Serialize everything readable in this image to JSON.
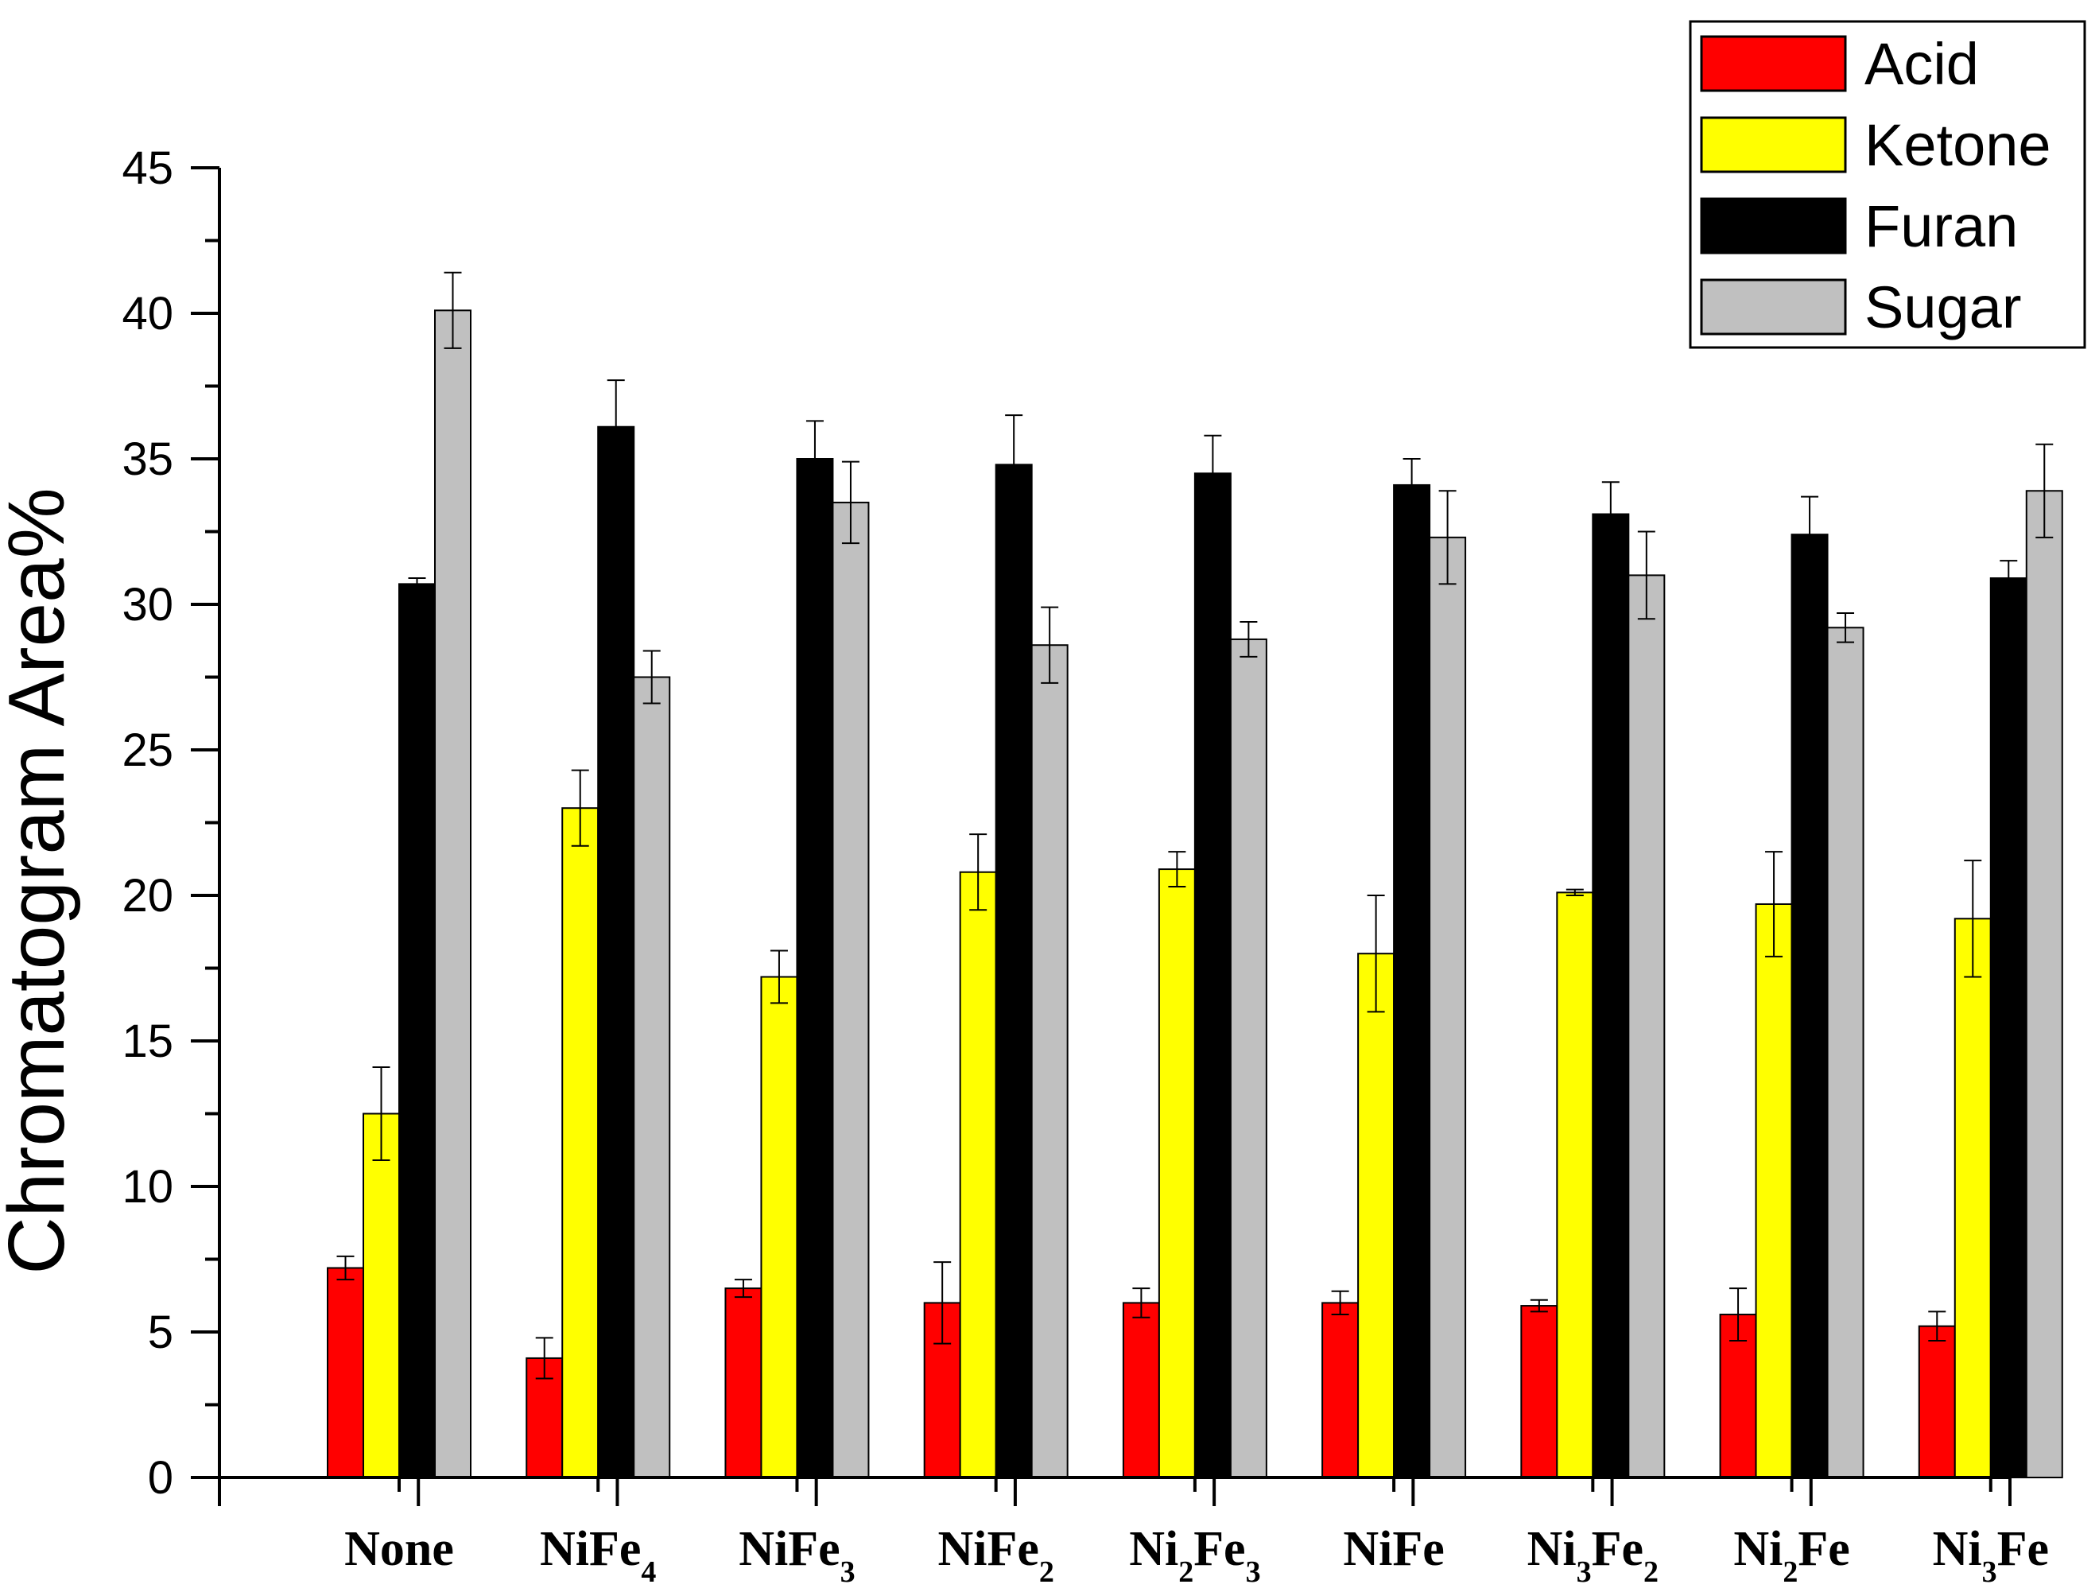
{
  "chart_data": {
    "type": "bar",
    "title": "",
    "xlabel": "",
    "ylabel": "Chromatogram Area%",
    "ylim": [
      0,
      45
    ],
    "yticks": [
      "0",
      "5",
      "10",
      "15",
      "20",
      "25",
      "30",
      "35",
      "40",
      "45"
    ],
    "categories": [
      {
        "main": "None",
        "parts": [
          {
            "t": "None",
            "sub": false
          }
        ]
      },
      {
        "main": "NiFe4",
        "parts": [
          {
            "t": "NiFe",
            "sub": false
          },
          {
            "t": "4",
            "sub": true
          }
        ]
      },
      {
        "main": "NiFe3",
        "parts": [
          {
            "t": "NiFe",
            "sub": false
          },
          {
            "t": "3",
            "sub": true
          }
        ]
      },
      {
        "main": "NiFe2",
        "parts": [
          {
            "t": "NiFe",
            "sub": false
          },
          {
            "t": "2",
            "sub": true
          }
        ]
      },
      {
        "main": "Ni2Fe3",
        "parts": [
          {
            "t": "Ni",
            "sub": false
          },
          {
            "t": "2",
            "sub": true
          },
          {
            "t": "Fe",
            "sub": false
          },
          {
            "t": "3",
            "sub": true
          }
        ]
      },
      {
        "main": "NiFe",
        "parts": [
          {
            "t": "NiFe",
            "sub": false
          }
        ]
      },
      {
        "main": "Ni3Fe2",
        "parts": [
          {
            "t": "Ni",
            "sub": false
          },
          {
            "t": "3",
            "sub": true
          },
          {
            "t": "Fe",
            "sub": false
          },
          {
            "t": "2",
            "sub": true
          }
        ]
      },
      {
        "main": "Ni2Fe",
        "parts": [
          {
            "t": "Ni",
            "sub": false
          },
          {
            "t": "2",
            "sub": true
          },
          {
            "t": "Fe",
            "sub": false
          }
        ]
      },
      {
        "main": "Ni3Fe",
        "parts": [
          {
            "t": "Ni",
            "sub": false
          },
          {
            "t": "3",
            "sub": true
          },
          {
            "t": "Fe",
            "sub": false
          }
        ]
      }
    ],
    "series": [
      {
        "name": "Acid",
        "color": "#ff0000",
        "values": [
          7.2,
          4.1,
          6.5,
          6.0,
          6.0,
          6.0,
          5.9,
          5.6,
          5.2
        ],
        "errors": [
          0.4,
          0.7,
          0.3,
          1.4,
          0.5,
          0.4,
          0.2,
          0.9,
          0.5
        ]
      },
      {
        "name": "Ketone",
        "color": "#ffff00",
        "values": [
          12.5,
          23.0,
          17.2,
          20.8,
          20.9,
          18.0,
          20.1,
          19.7,
          19.2
        ],
        "errors": [
          1.6,
          1.3,
          0.9,
          1.3,
          0.6,
          2.0,
          0.1,
          1.8,
          2.0
        ]
      },
      {
        "name": "Furan",
        "color": "#000000",
        "values": [
          30.7,
          36.1,
          35.0,
          34.8,
          34.5,
          34.1,
          33.1,
          32.4,
          30.9
        ],
        "errors": [
          0.2,
          1.6,
          1.3,
          1.7,
          1.3,
          0.9,
          1.1,
          1.3,
          0.6
        ]
      },
      {
        "name": "Sugar",
        "color": "#c0c0c0",
        "values": [
          40.1,
          27.5,
          33.5,
          28.6,
          28.8,
          32.3,
          31.0,
          29.2,
          33.9
        ],
        "errors": [
          1.3,
          0.9,
          1.4,
          1.3,
          0.6,
          1.6,
          1.5,
          0.5,
          1.6
        ]
      }
    ],
    "legend_position": "top-right"
  }
}
